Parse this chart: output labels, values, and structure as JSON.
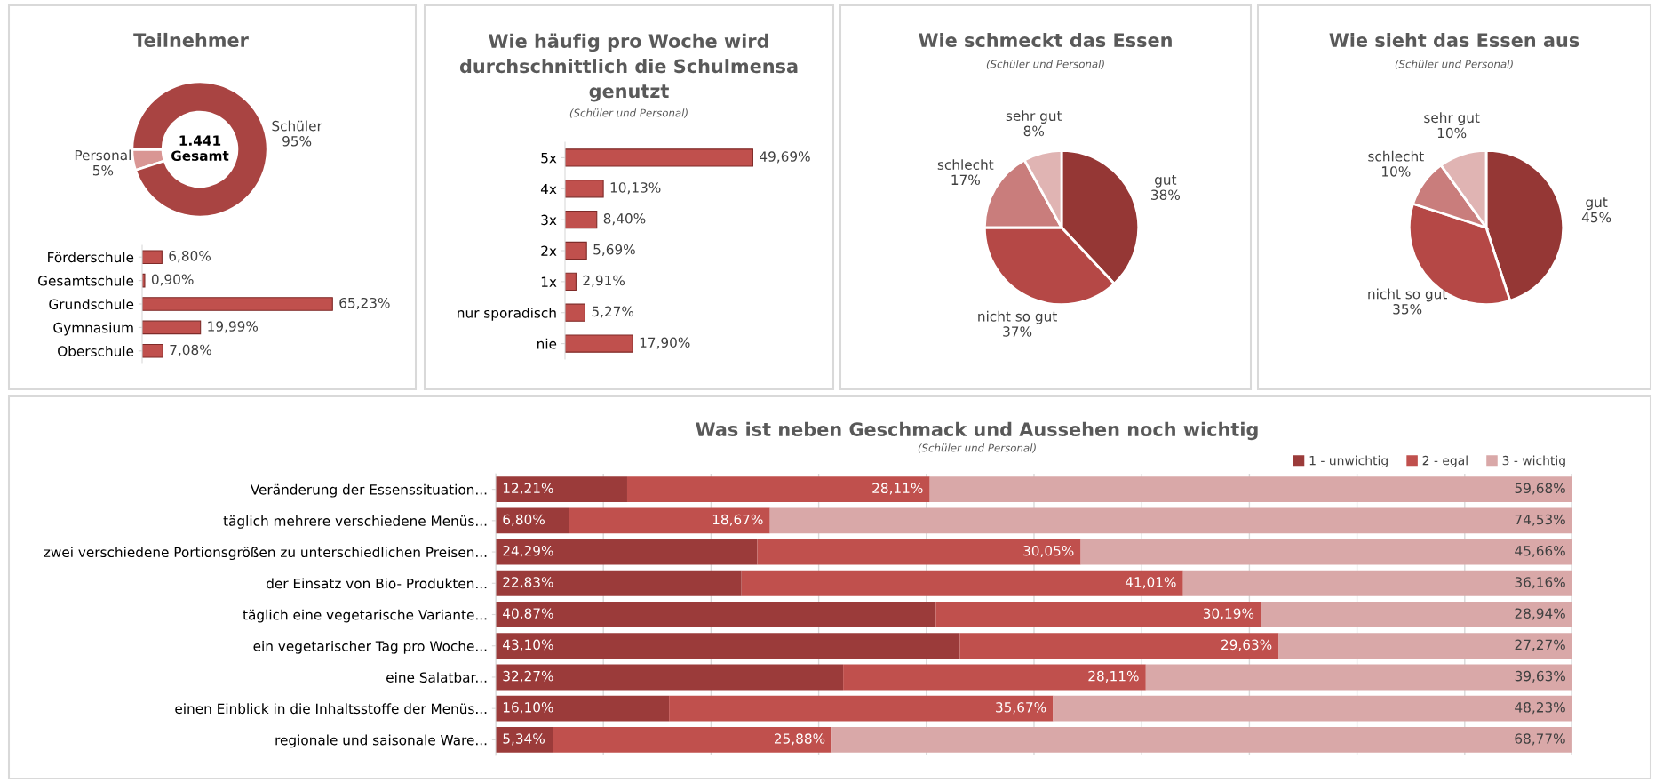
{
  "chart_data": [
    {
      "type": "donut",
      "title": "Teilnehmer",
      "categories": [
        "Personal",
        "Schüler"
      ],
      "values": [
        5,
        95
      ],
      "value_labels": [
        "5%",
        "95%"
      ],
      "colors": [
        "#d99694",
        "#a94442"
      ],
      "annotations": [
        "1.441\nGesamt"
      ]
    },
    {
      "type": "bar",
      "orientation": "horizontal",
      "categories": [
        "Förderschule",
        "Gesamtschule",
        "Grundschule",
        "Gymnasium",
        "Oberschule"
      ],
      "values": [
        6.8,
        0.9,
        65.23,
        19.99,
        7.08
      ],
      "value_labels": [
        "6,80%",
        "0,90%",
        "65,23%",
        "19,99%",
        "7,08%"
      ],
      "color": "#c0504d"
    },
    {
      "type": "bar",
      "orientation": "horizontal",
      "title": "Wie häufig pro Woche wird\ndurchschnittlich die Schulmensa\ngenutzt",
      "subtitle": "(Schüler und Personal)",
      "categories": [
        "5x",
        "4x",
        "3x",
        "2x",
        "1x",
        "nur sporadisch",
        "nie"
      ],
      "values": [
        49.69,
        10.13,
        8.4,
        5.69,
        2.91,
        5.27,
        17.9
      ],
      "value_labels": [
        "49,69%",
        "10,13%",
        "8,40%",
        "5,69%",
        "2,91%",
        "5,27%",
        "17,90%"
      ],
      "color": "#c0504d"
    },
    {
      "type": "pie",
      "title": "Wie schmeckt das Essen",
      "subtitle": "(Schüler und Personal)",
      "categories": [
        "gut",
        "nicht so gut",
        "schlecht",
        "sehr gut"
      ],
      "values": [
        38,
        37,
        17,
        8
      ],
      "value_labels": [
        "38%",
        "37%",
        "17%",
        "8%"
      ],
      "colors": [
        "#953735",
        "#b54846",
        "#c97d7c",
        "#e0b4b3"
      ]
    },
    {
      "type": "pie",
      "title": "Wie sieht das Essen aus",
      "subtitle": "(Schüler und Personal)",
      "categories": [
        "gut",
        "nicht so gut",
        "schlecht",
        "sehr gut"
      ],
      "values": [
        45,
        35,
        10,
        10
      ],
      "value_labels": [
        "45%",
        "35%",
        "10%",
        "10%"
      ],
      "colors": [
        "#953735",
        "#b54846",
        "#c97d7c",
        "#e0b4b3"
      ]
    },
    {
      "type": "bar",
      "orientation": "horizontal",
      "stacked": true,
      "title": "Was ist neben Geschmack und Aussehen noch wichtig",
      "subtitle": "(Schüler und Personal)",
      "categories": [
        "Veränderung der Essenssituation...",
        "täglich mehrere verschiedene Menüs...",
        "zwei verschiedene Portionsgrößen zu unterschiedlichen Preisen...",
        "der Einsatz von Bio- Produkten...",
        "täglich eine vegetarische Variante...",
        "ein vegetarischer Tag pro Woche...",
        "eine Salatbar...",
        "einen Einblick in die Inhaltsstoffe der Menüs...",
        "regionale und saisonale Ware..."
      ],
      "xlim": [
        0,
        100
      ],
      "xticks": [
        {
          "value": 0,
          "label": null
        },
        {
          "value": 10,
          "label": null
        },
        {
          "value": 20,
          "label": null
        },
        {
          "value": 30,
          "label": null
        },
        {
          "value": 40,
          "label": null
        },
        {
          "value": 50,
          "label": null
        },
        {
          "value": 60,
          "label": null
        },
        {
          "value": 70,
          "label": null
        },
        {
          "value": 80,
          "label": null
        },
        {
          "value": 90,
          "label": null
        },
        {
          "value": 100,
          "label": null
        }
      ],
      "tick_labels": "y",
      "grid": "x",
      "legend": "top right",
      "series": [
        {
          "name": "1 - unwichtig",
          "color": "#9b3b3a",
          "values": [
            12.21,
            6.8,
            24.29,
            22.83,
            40.87,
            43.1,
            32.27,
            16.1,
            5.34
          ],
          "value_labels": [
            "12,21%",
            "6,80%",
            "24,29%",
            "22,83%",
            "40,87%",
            "43,10%",
            "32,27%",
            "16,10%",
            "5,34%"
          ]
        },
        {
          "name": "2 - egal",
          "color": "#c0504d",
          "values": [
            28.11,
            18.67,
            30.05,
            41.01,
            30.19,
            29.63,
            28.11,
            35.67,
            25.88
          ],
          "value_labels": [
            "28,11%",
            "18,67%",
            "30,05%",
            "41,01%",
            "30,19%",
            "29,63%",
            "28,11%",
            "35,67%",
            "25,88%"
          ]
        },
        {
          "name": "3 - wichtig",
          "color": "#d9a8a8",
          "values": [
            59.68,
            74.53,
            45.66,
            36.16,
            28.94,
            27.27,
            39.63,
            48.23,
            68.77
          ],
          "value_labels": [
            "59,68%",
            "74,53%",
            "45,66%",
            "36,16%",
            "28,94%",
            "27,27%",
            "39,63%",
            "48,23%",
            "68,77%"
          ]
        }
      ]
    }
  ]
}
